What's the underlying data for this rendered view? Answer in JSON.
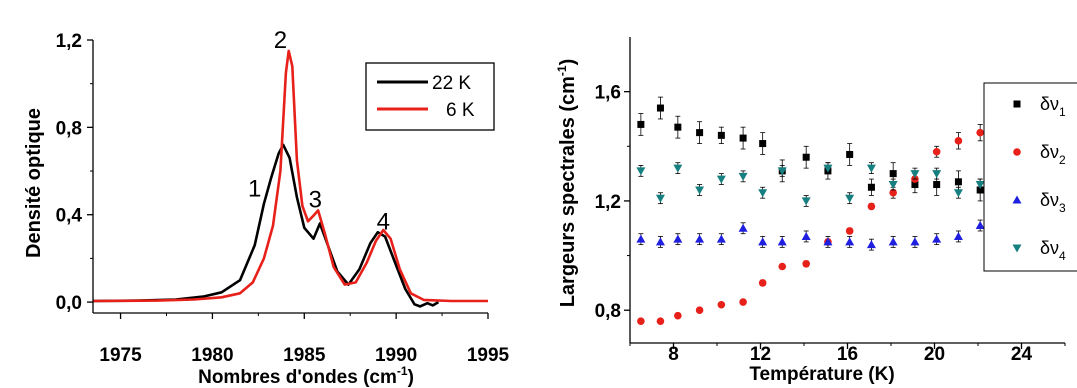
{
  "chart_data": [
    {
      "type": "line",
      "xlabel_main": "Nombres d'ondes (cm",
      "xlabel_sup": "-1",
      "xlabel_close": ")",
      "ylabel": "Densité optique",
      "xlim": [
        1973.5,
        1995
      ],
      "ylim": [
        -0.05,
        1.2
      ],
      "xticks": [
        "1975",
        "1980",
        "1985",
        "1990",
        "1995"
      ],
      "xtick_values": [
        1975,
        1980,
        1985,
        1990,
        1995
      ],
      "yticks": [
        "0,0",
        "0,4",
        "0,8",
        "1,2"
      ],
      "ytick_values": [
        0.0,
        0.4,
        0.8,
        1.2
      ],
      "legend_position": "top-right",
      "series": [
        {
          "name": "22 K",
          "color": "#000000",
          "points": [
            [
              1973.5,
              0.005
            ],
            [
              1976,
              0.007
            ],
            [
              1978,
              0.012
            ],
            [
              1979.5,
              0.025
            ],
            [
              1980.5,
              0.045
            ],
            [
              1981.5,
              0.1
            ],
            [
              1982.3,
              0.26
            ],
            [
              1982.8,
              0.45
            ],
            [
              1983.2,
              0.57
            ],
            [
              1983.6,
              0.68
            ],
            [
              1983.85,
              0.72
            ],
            [
              1984.2,
              0.66
            ],
            [
              1984.6,
              0.48
            ],
            [
              1985.0,
              0.34
            ],
            [
              1985.5,
              0.29
            ],
            [
              1985.85,
              0.36
            ],
            [
              1986.2,
              0.28
            ],
            [
              1986.8,
              0.14
            ],
            [
              1987.4,
              0.08
            ],
            [
              1988.0,
              0.15
            ],
            [
              1988.6,
              0.27
            ],
            [
              1989.0,
              0.32
            ],
            [
              1989.4,
              0.3
            ],
            [
              1989.9,
              0.19
            ],
            [
              1990.5,
              0.06
            ],
            [
              1991.0,
              -0.01
            ],
            [
              1991.3,
              -0.02
            ],
            [
              1991.7,
              -0.005
            ],
            [
              1992.0,
              -0.015
            ],
            [
              1992.3,
              0.0
            ]
          ]
        },
        {
          "name": "6 K",
          "color": "#e8201a",
          "points": [
            [
              1973.5,
              0.005
            ],
            [
              1977,
              0.007
            ],
            [
              1979,
              0.012
            ],
            [
              1980.5,
              0.022
            ],
            [
              1981.5,
              0.04
            ],
            [
              1982.2,
              0.09
            ],
            [
              1982.8,
              0.2
            ],
            [
              1983.3,
              0.35
            ],
            [
              1983.7,
              0.6
            ],
            [
              1984.0,
              1.05
            ],
            [
              1984.15,
              1.15
            ],
            [
              1984.35,
              1.08
            ],
            [
              1984.6,
              0.65
            ],
            [
              1984.9,
              0.44
            ],
            [
              1985.2,
              0.37
            ],
            [
              1985.55,
              0.4
            ],
            [
              1985.75,
              0.42
            ],
            [
              1986.1,
              0.32
            ],
            [
              1986.6,
              0.16
            ],
            [
              1987.2,
              0.08
            ],
            [
              1987.8,
              0.09
            ],
            [
              1988.4,
              0.18
            ],
            [
              1988.9,
              0.28
            ],
            [
              1989.3,
              0.33
            ],
            [
              1989.7,
              0.29
            ],
            [
              1990.2,
              0.15
            ],
            [
              1990.8,
              0.04
            ],
            [
              1991.5,
              0.01
            ],
            [
              1993,
              0.005
            ],
            [
              1995,
              0.005
            ]
          ]
        }
      ],
      "annotations": [
        {
          "text": "1",
          "x": 1982.3,
          "y": 0.52
        },
        {
          "text": "2",
          "x": 1983.7,
          "y": 1.2
        },
        {
          "text": "3",
          "x": 1985.6,
          "y": 0.47
        },
        {
          "text": "4",
          "x": 1989.3,
          "y": 0.37
        }
      ]
    },
    {
      "type": "scatter",
      "xlabel": "Température  (K)",
      "ylabel_main": "Largeurs spectrales (cm",
      "ylabel_sup": "-1",
      "ylabel_close": ")",
      "xlim": [
        6,
        26
      ],
      "ylim": [
        0.68,
        1.8
      ],
      "xticks": [
        "8",
        "12",
        "16",
        "20",
        "24"
      ],
      "xtick_values": [
        8,
        12,
        16,
        20,
        24
      ],
      "yticks": [
        "0,8",
        "1,2",
        "1,6"
      ],
      "ytick_values": [
        0.8,
        1.2,
        1.6
      ],
      "legend_position": "right",
      "series": [
        {
          "name": "δν",
          "sub": "1",
          "marker": "square",
          "color": "#000000",
          "x": [
            6.5,
            7.4,
            8.2,
            9.2,
            10.2,
            11.2,
            12.1,
            13.0,
            14.1,
            15.1,
            16.1,
            17.1,
            18.1,
            19.1,
            20.1,
            21.1,
            22.1
          ],
          "y": [
            1.48,
            1.54,
            1.47,
            1.45,
            1.44,
            1.43,
            1.41,
            1.31,
            1.36,
            1.31,
            1.37,
            1.25,
            1.3,
            1.26,
            1.26,
            1.27,
            1.24
          ],
          "err": [
            0.04,
            0.04,
            0.04,
            0.04,
            0.03,
            0.04,
            0.04,
            0.04,
            0.04,
            0.03,
            0.04,
            0.03,
            0.04,
            0.03,
            0.04,
            0.04,
            0.04
          ]
        },
        {
          "name": "δν",
          "sub": "2",
          "marker": "circle",
          "color": "#e8201a",
          "x": [
            6.5,
            7.4,
            8.2,
            9.2,
            10.2,
            11.2,
            12.1,
            13.0,
            14.1,
            15.1,
            16.1,
            17.1,
            18.1,
            19.1,
            20.1,
            21.1,
            22.1
          ],
          "y": [
            0.76,
            0.76,
            0.78,
            0.8,
            0.82,
            0.83,
            0.9,
            0.96,
            0.97,
            1.05,
            1.09,
            1.18,
            1.23,
            1.28,
            1.38,
            1.42,
            1.45
          ],
          "err": [
            0,
            0,
            0,
            0,
            0,
            0,
            0.01,
            0,
            0.01,
            0.01,
            0.01,
            0.01,
            0.02,
            0.02,
            0.02,
            0.03,
            0.03
          ]
        },
        {
          "name": "δν",
          "sub": "3",
          "marker": "triangle-up",
          "color": "#1f1fe0",
          "x": [
            6.5,
            7.4,
            8.2,
            9.2,
            10.2,
            11.2,
            12.1,
            13.0,
            14.1,
            15.1,
            16.1,
            17.1,
            18.1,
            19.1,
            20.1,
            21.1,
            22.1
          ],
          "y": [
            1.06,
            1.05,
            1.06,
            1.06,
            1.06,
            1.1,
            1.05,
            1.05,
            1.07,
            1.05,
            1.05,
            1.04,
            1.05,
            1.05,
            1.06,
            1.07,
            1.11
          ],
          "err": [
            0.02,
            0.02,
            0.02,
            0.02,
            0.02,
            0.02,
            0.02,
            0.02,
            0.02,
            0.02,
            0.02,
            0.02,
            0.02,
            0.02,
            0.02,
            0.02,
            0.02
          ]
        },
        {
          "name": "δν",
          "sub": "4",
          "marker": "triangle-down",
          "color": "#167f7f",
          "x": [
            6.5,
            7.4,
            8.2,
            9.2,
            10.2,
            11.2,
            12.1,
            13.0,
            14.1,
            15.1,
            16.1,
            17.1,
            18.1,
            19.1,
            20.1,
            21.1,
            22.1
          ],
          "y": [
            1.31,
            1.21,
            1.32,
            1.24,
            1.28,
            1.29,
            1.23,
            1.31,
            1.2,
            1.32,
            1.21,
            1.32,
            1.26,
            1.3,
            1.3,
            1.23,
            1.26
          ],
          "err": [
            0.02,
            0.02,
            0.02,
            0.02,
            0.02,
            0.02,
            0.02,
            0.02,
            0.02,
            0.02,
            0.02,
            0.02,
            0.02,
            0.02,
            0.02,
            0.02,
            0.02
          ]
        }
      ]
    }
  ]
}
